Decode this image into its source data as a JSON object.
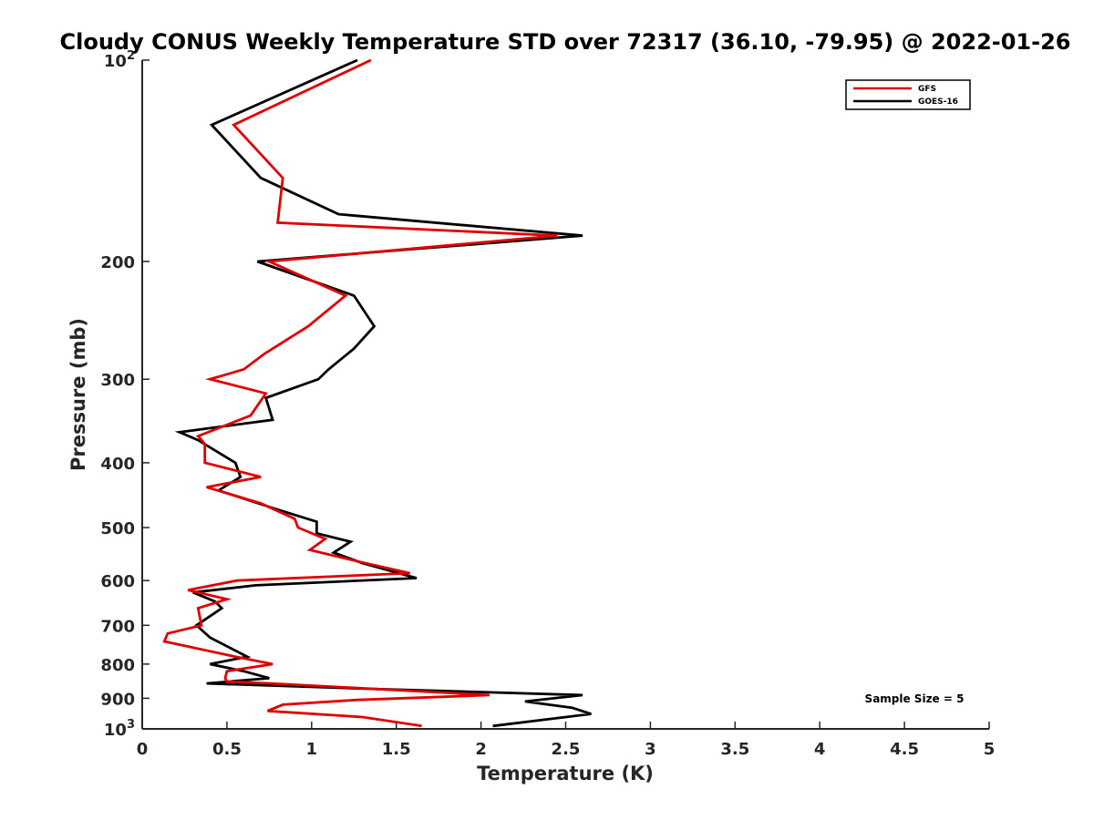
{
  "chart_data": {
    "type": "line",
    "title": "Cloudy CONUS Weekly Temperature STD over 72317 (36.10, -79.95) @ 2022-01-26",
    "xlabel": "Temperature (K)",
    "ylabel": "Pressure (mb)",
    "xlim": [
      0,
      5
    ],
    "ylim": [
      100,
      1000
    ],
    "y_scale": "log",
    "y_reversed": true,
    "grid": false,
    "legend_position": "top-right",
    "x_ticks": [
      "0",
      "0.5",
      "1",
      "1.5",
      "2",
      "2.5",
      "3",
      "3.5",
      "4",
      "4.5",
      "5"
    ],
    "y_ticks": [
      {
        "value": 100,
        "base": "10",
        "exp": "2"
      },
      {
        "value": 200,
        "label": "200"
      },
      {
        "value": 300,
        "label": "300"
      },
      {
        "value": 400,
        "label": "400"
      },
      {
        "value": 500,
        "label": "500"
      },
      {
        "value": 600,
        "label": "600"
      },
      {
        "value": 700,
        "label": "700"
      },
      {
        "value": 800,
        "label": "800"
      },
      {
        "value": 900,
        "label": "900"
      },
      {
        "value": 1000,
        "base": "10",
        "exp": "3"
      }
    ],
    "annotation": "Sample Size = 5",
    "series": [
      {
        "name": "GFS",
        "color": "#e00000",
        "points": [
          [
            1.35,
            100
          ],
          [
            0.54,
            125
          ],
          [
            0.83,
            150
          ],
          [
            0.8,
            175
          ],
          [
            2.45,
            183
          ],
          [
            0.75,
            200
          ],
          [
            1.2,
            225
          ],
          [
            0.98,
            250
          ],
          [
            0.72,
            275
          ],
          [
            0.6,
            290
          ],
          [
            0.4,
            300
          ],
          [
            0.73,
            315
          ],
          [
            0.64,
            340
          ],
          [
            0.33,
            365
          ],
          [
            0.37,
            375
          ],
          [
            0.37,
            400
          ],
          [
            0.7,
            420
          ],
          [
            0.38,
            435
          ],
          [
            0.7,
            460
          ],
          [
            0.9,
            485
          ],
          [
            0.92,
            500
          ],
          [
            1.08,
            520
          ],
          [
            0.99,
            540
          ],
          [
            1.25,
            560
          ],
          [
            1.58,
            585
          ],
          [
            0.56,
            600
          ],
          [
            0.27,
            620
          ],
          [
            0.5,
            640
          ],
          [
            0.33,
            660
          ],
          [
            0.35,
            700
          ],
          [
            0.15,
            720
          ],
          [
            0.13,
            740
          ],
          [
            0.55,
            780
          ],
          [
            0.77,
            800
          ],
          [
            0.5,
            820
          ],
          [
            0.49,
            840
          ],
          [
            0.5,
            850
          ],
          [
            0.76,
            855
          ],
          [
            2.05,
            890
          ],
          [
            1.27,
            905
          ],
          [
            0.83,
            920
          ],
          [
            0.74,
            940
          ],
          [
            1.3,
            960
          ],
          [
            1.65,
            990
          ]
        ]
      },
      {
        "name": "GOES-16",
        "color": "#000000",
        "points": [
          [
            1.27,
            100
          ],
          [
            0.41,
            125
          ],
          [
            0.7,
            150
          ],
          [
            1.16,
            170
          ],
          [
            2.6,
            183
          ],
          [
            0.68,
            200
          ],
          [
            1.25,
            225
          ],
          [
            1.37,
            250
          ],
          [
            1.25,
            270
          ],
          [
            1.1,
            290
          ],
          [
            1.04,
            300
          ],
          [
            0.73,
            320
          ],
          [
            0.77,
            345
          ],
          [
            0.22,
            360
          ],
          [
            0.33,
            370
          ],
          [
            0.55,
            400
          ],
          [
            0.58,
            420
          ],
          [
            0.45,
            440
          ],
          [
            0.8,
            470
          ],
          [
            1.03,
            490
          ],
          [
            1.03,
            510
          ],
          [
            1.23,
            525
          ],
          [
            1.13,
            545
          ],
          [
            1.3,
            565
          ],
          [
            1.62,
            595
          ],
          [
            0.67,
            610
          ],
          [
            0.3,
            625
          ],
          [
            0.43,
            645
          ],
          [
            0.47,
            660
          ],
          [
            0.32,
            700
          ],
          [
            0.4,
            730
          ],
          [
            0.62,
            780
          ],
          [
            0.4,
            800
          ],
          [
            0.6,
            820
          ],
          [
            0.75,
            840
          ],
          [
            0.38,
            855
          ],
          [
            1.27,
            870
          ],
          [
            2.6,
            890
          ],
          [
            2.26,
            910
          ],
          [
            2.54,
            930
          ],
          [
            2.65,
            950
          ],
          [
            2.07,
            990
          ]
        ]
      }
    ]
  }
}
